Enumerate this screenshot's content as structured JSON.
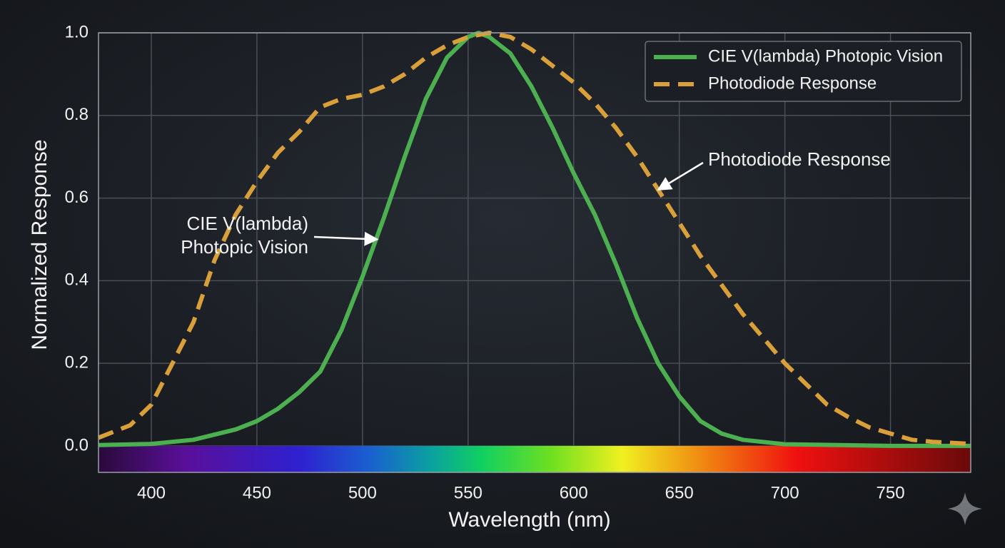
{
  "chart_data": {
    "type": "line",
    "xlabel": "Wavelength (nm)",
    "ylabel": "Normalized Response",
    "xlim": [
      375,
      788
    ],
    "ylim": [
      -0.064,
      1.0
    ],
    "xticks": [
      400,
      450,
      500,
      550,
      600,
      650,
      700,
      750
    ],
    "yticks": [
      {
        "value": 0,
        "label": "0.0"
      },
      {
        "value": 0.2,
        "label": "0.2"
      },
      {
        "value": 0.4,
        "label": "0.4"
      },
      {
        "value": 0.6,
        "label": "0.6"
      },
      {
        "value": 0.8,
        "label": "0.8"
      },
      {
        "value": 1,
        "label": "1.0"
      }
    ],
    "grid": true,
    "legend": "upper right",
    "series": [
      {
        "name": "CIE V(lambda) Photopic Vision",
        "color": "#4caf50",
        "dash": false,
        "x": [
          375,
          400,
          420,
          440,
          450,
          460,
          470,
          480,
          490,
          500,
          510,
          520,
          530,
          540,
          550,
          555,
          560,
          570,
          580,
          590,
          600,
          610,
          620,
          630,
          640,
          650,
          660,
          670,
          680,
          700,
          750,
          788
        ],
        "values": [
          0.002,
          0.005,
          0.015,
          0.04,
          0.06,
          0.09,
          0.13,
          0.18,
          0.28,
          0.41,
          0.55,
          0.7,
          0.84,
          0.94,
          0.99,
          1.0,
          0.99,
          0.95,
          0.87,
          0.77,
          0.66,
          0.56,
          0.44,
          0.31,
          0.2,
          0.12,
          0.06,
          0.03,
          0.015,
          0.004,
          0.0,
          0.0
        ]
      },
      {
        "name": "Photodiode Response",
        "color": "#d9a03a",
        "dash": true,
        "x": [
          375,
          390,
          400,
          410,
          420,
          430,
          440,
          450,
          460,
          470,
          480,
          490,
          500,
          510,
          520,
          530,
          540,
          550,
          560,
          570,
          580,
          590,
          600,
          610,
          620,
          630,
          640,
          650,
          660,
          670,
          680,
          690,
          700,
          710,
          720,
          730,
          740,
          750,
          760,
          770,
          788
        ],
        "values": [
          0.02,
          0.05,
          0.1,
          0.2,
          0.3,
          0.45,
          0.56,
          0.64,
          0.71,
          0.76,
          0.82,
          0.84,
          0.85,
          0.87,
          0.9,
          0.94,
          0.97,
          0.99,
          1.0,
          0.99,
          0.96,
          0.92,
          0.88,
          0.83,
          0.77,
          0.7,
          0.62,
          0.54,
          0.46,
          0.39,
          0.32,
          0.26,
          0.2,
          0.15,
          0.1,
          0.07,
          0.045,
          0.03,
          0.015,
          0.01,
          0.005
        ]
      }
    ],
    "annotations": [
      {
        "lines": [
          "CIE V(lambda)",
          "Photopic Vision"
        ],
        "xy": [
          507,
          0.5
        ]
      },
      {
        "lines": [
          "Photodiode Response"
        ],
        "xy": [
          640,
          0.62
        ]
      }
    ]
  }
}
